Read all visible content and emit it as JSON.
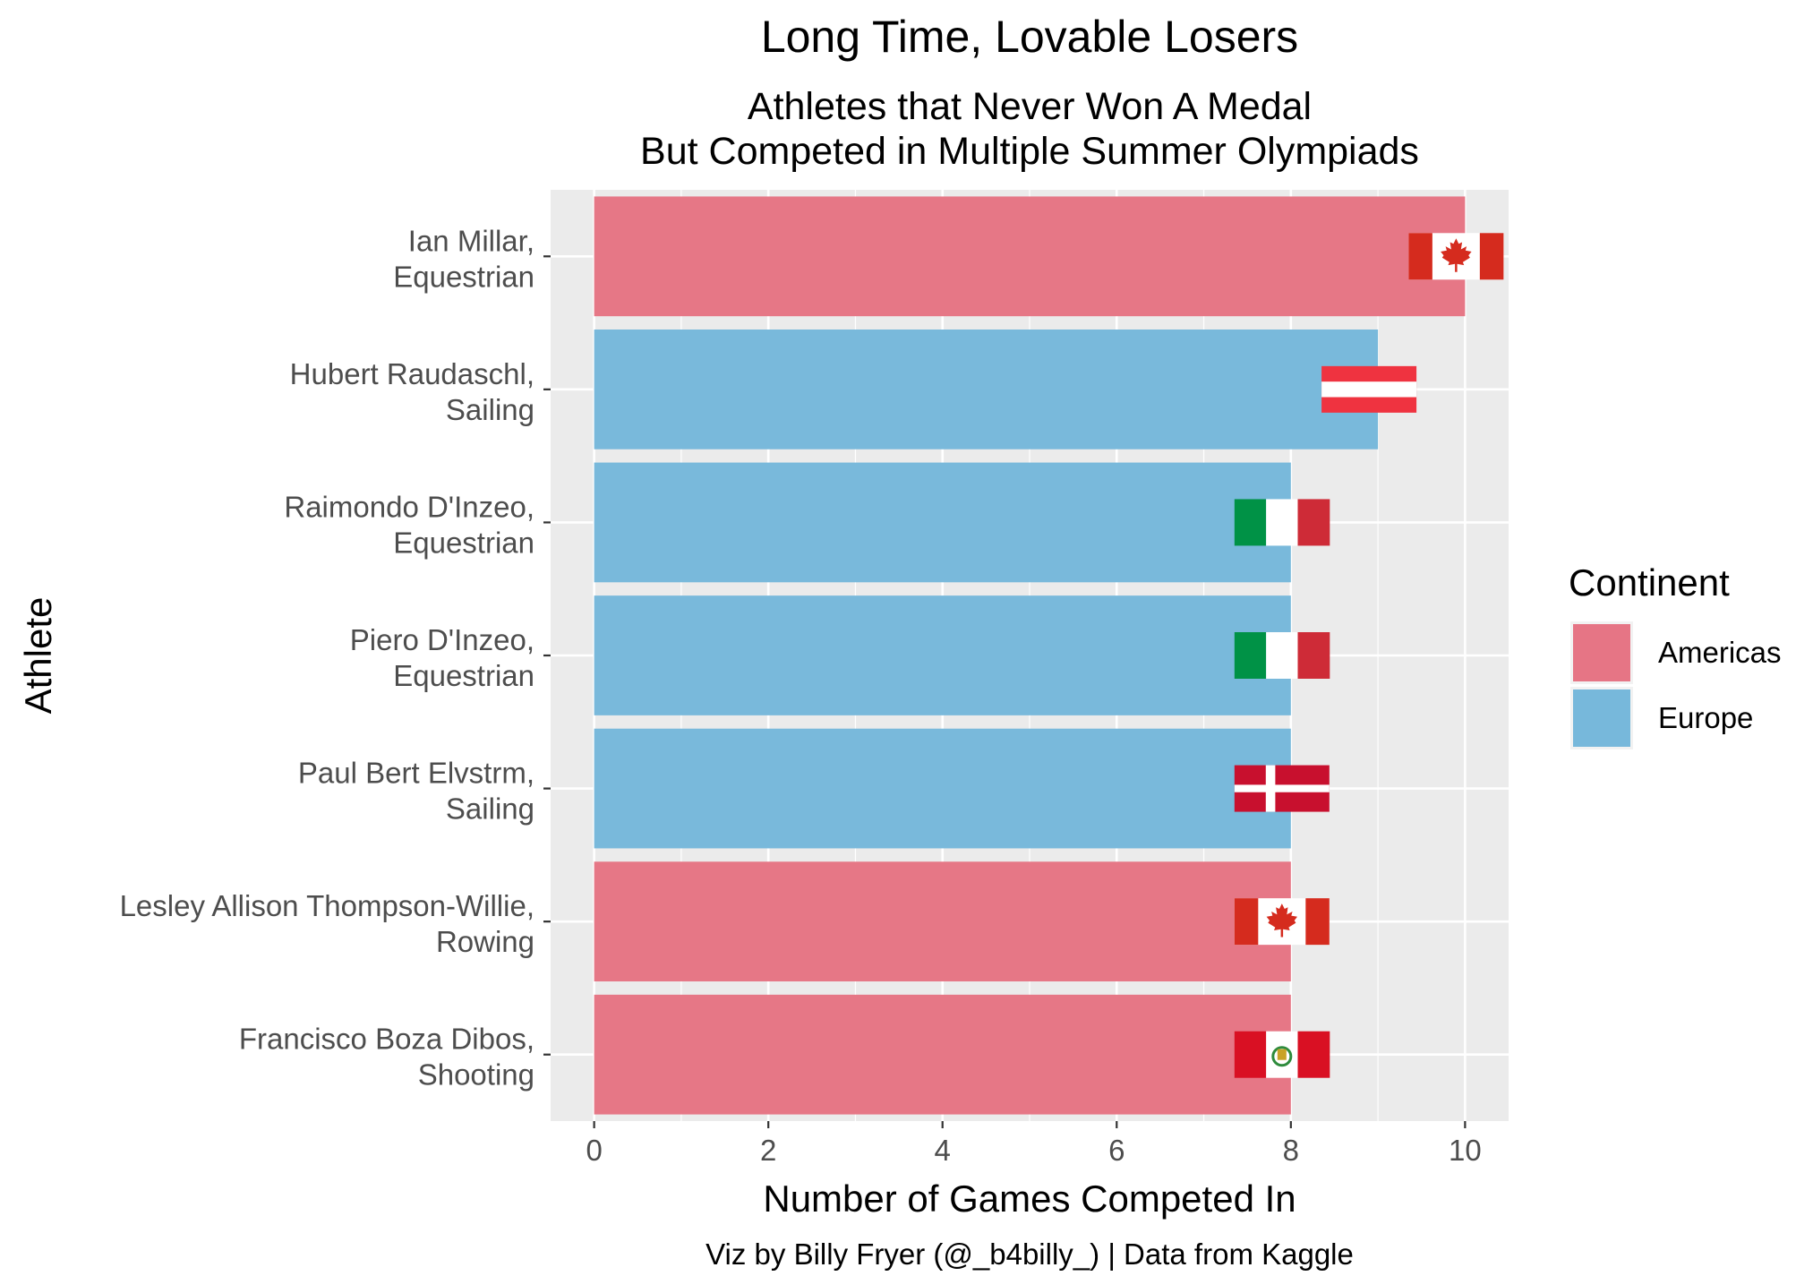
{
  "chart_data": {
    "type": "bar",
    "orientation": "horizontal",
    "title": "Long Time, Lovable Losers",
    "subtitle": [
      "Athletes that Never Won A Medal",
      "But Competed in Multiple Summer Olympiads"
    ],
    "xlabel": "Number of Games Competed In",
    "ylabel": "Athlete",
    "caption": "Viz by Billy Fryer (@_b4billy_) | Data from Kaggle",
    "xlim": [
      -0.5,
      10.5
    ],
    "xticks": [
      0,
      2,
      4,
      6,
      8,
      10
    ],
    "grid": true,
    "legend": {
      "title": "Continent",
      "position": "right",
      "entries": [
        {
          "name": "Americas",
          "color": "#E67585"
        },
        {
          "name": "Europe",
          "color": "#77B8DB"
        }
      ]
    },
    "categories": [
      {
        "name": "Ian Millar,",
        "sport": "Equestrian",
        "value": 10,
        "continent": "Americas",
        "flag": "canada"
      },
      {
        "name": "Hubert Raudaschl,",
        "sport": "Sailing",
        "value": 9,
        "continent": "Europe",
        "flag": "austria"
      },
      {
        "name": "Raimondo D'Inzeo,",
        "sport": "Equestrian",
        "value": 8,
        "continent": "Europe",
        "flag": "italy"
      },
      {
        "name": "Piero D'Inzeo,",
        "sport": "Equestrian",
        "value": 8,
        "continent": "Europe",
        "flag": "italy"
      },
      {
        "name": "Paul Bert Elvstrm,",
        "sport": "Sailing",
        "value": 8,
        "continent": "Europe",
        "flag": "denmark"
      },
      {
        "name": "Lesley Allison Thompson-Willie,",
        "sport": "Rowing",
        "value": 8,
        "continent": "Americas",
        "flag": "canada"
      },
      {
        "name": "Francisco Boza Dibos,",
        "sport": "Shooting",
        "value": 8,
        "continent": "Americas",
        "flag": "peru"
      }
    ],
    "colors": {
      "panel": "#EBEBEB",
      "grid_major": "#FFFFFF",
      "Americas": "#E67585",
      "Europe": "#77B8DB"
    }
  }
}
